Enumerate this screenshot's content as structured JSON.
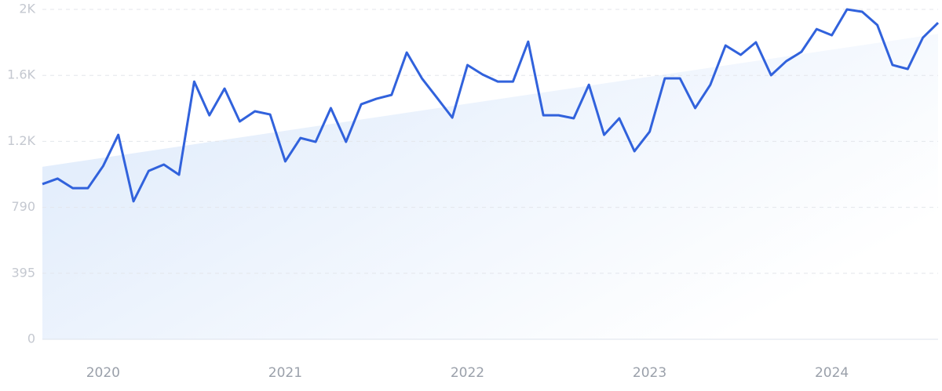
{
  "chart_data": {
    "type": "line",
    "categories": [
      null,
      null,
      null,
      null,
      "2020",
      null,
      null,
      null,
      null,
      null,
      null,
      null,
      null,
      null,
      null,
      null,
      "2021",
      null,
      null,
      null,
      null,
      null,
      null,
      null,
      null,
      null,
      null,
      null,
      "2022",
      null,
      null,
      null,
      null,
      null,
      null,
      null,
      null,
      null,
      null,
      null,
      "2023",
      null,
      null,
      null,
      null,
      null,
      null,
      null,
      null,
      null,
      null,
      null,
      "2024",
      null,
      null,
      null,
      null,
      null,
      null,
      null
    ],
    "series": [
      {
        "color": "#3162dc",
        "values": [
          929,
          962,
          905,
          905,
          1037,
          1224,
          826,
          1008,
          1046,
          985,
          1543,
          1341,
          1501,
          1304,
          1365,
          1346,
          1065,
          1205,
          1182,
          1384,
          1182,
          1407,
          1440,
          1463,
          1717,
          1562,
          1445,
          1327,
          1642,
          1585,
          1543,
          1543,
          1782,
          1341,
          1341,
          1323,
          1524,
          1224,
          1323,
          1126,
          1243,
          1562,
          1562,
          1384,
          1524,
          1759,
          1703,
          1778,
          1581,
          1665,
          1721,
          1857,
          1820,
          1975,
          1961,
          1881,
          1642,
          1618,
          1806,
          1895
        ]
      }
    ],
    "ylim": [
      0,
      1975
    ],
    "yticks": [
      0,
      395,
      790,
      {
        "value": 1185,
        "label": "1.2K"
      },
      {
        "value": 1580,
        "label": "1.6K"
      },
      {
        "value": 1975,
        "label": "2K"
      }
    ],
    "grid": true
  }
}
